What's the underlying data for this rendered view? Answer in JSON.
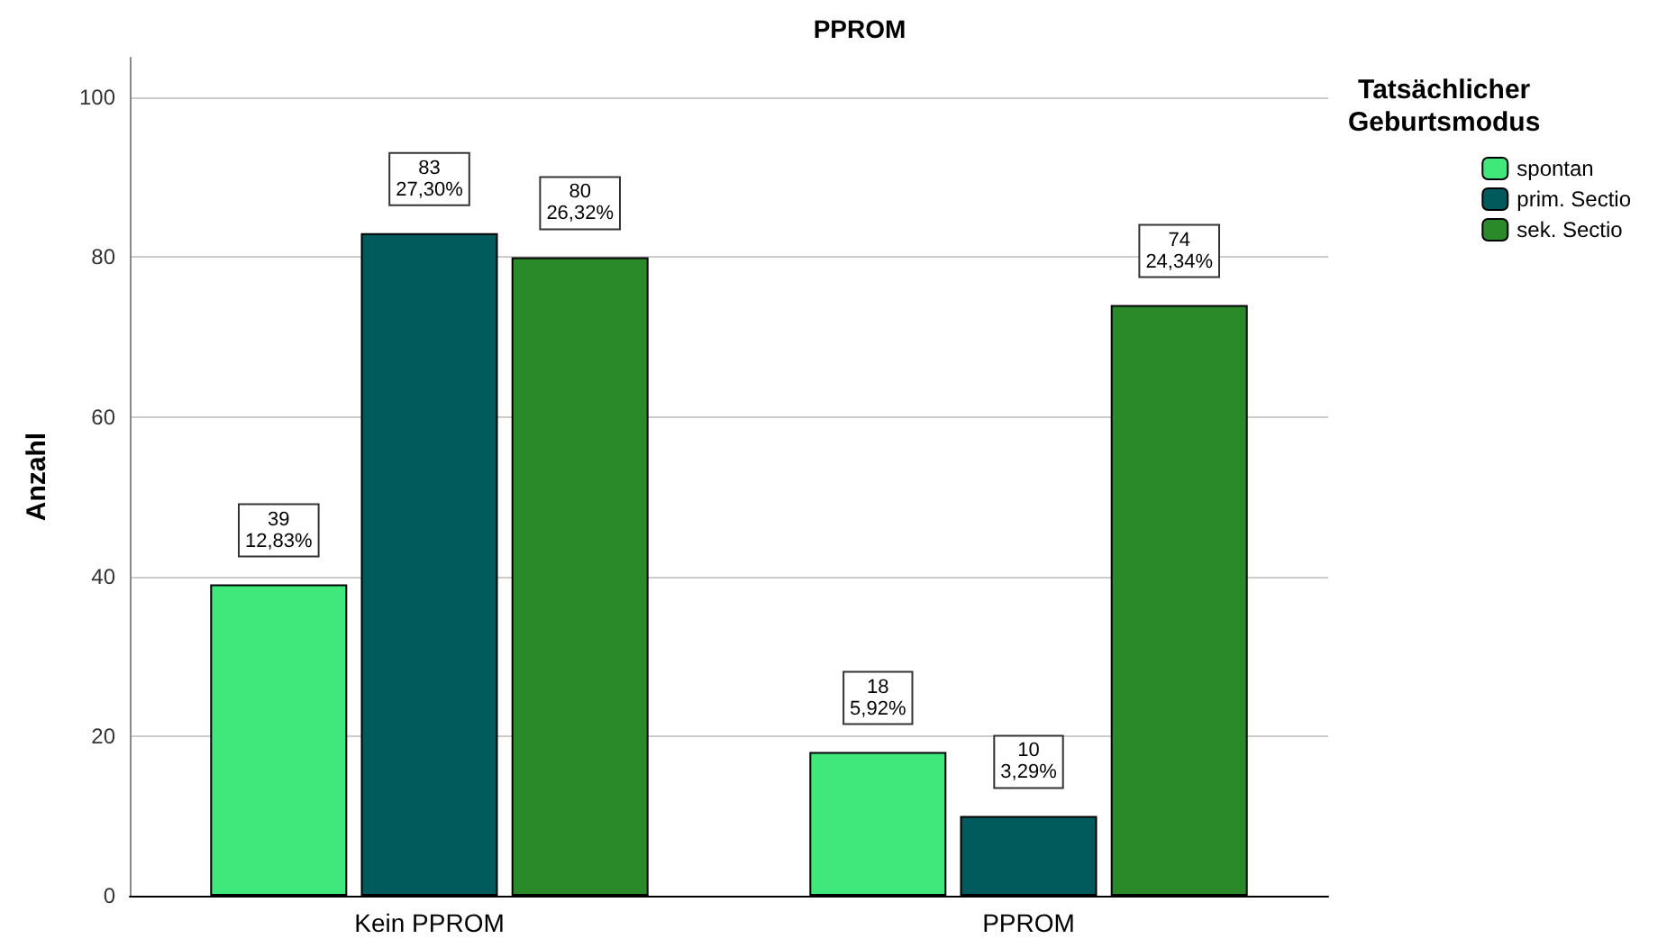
{
  "chart_data": {
    "type": "bar",
    "title": "PPROM",
    "ylabel": "Anzahl",
    "legend_title": "Tatsächlicher\nGeburtsmodus",
    "categories": [
      "Kein PPROM",
      "PPROM"
    ],
    "series": [
      {
        "name": "spontan",
        "color": "#40e87c",
        "values": [
          39,
          18
        ],
        "value_labels": [
          "39\n12,83%",
          "18\n5,92%"
        ]
      },
      {
        "name": "prim. Sectio",
        "color": "#015a5c",
        "values": [
          83,
          10
        ],
        "value_labels": [
          "83\n27,30%",
          "10\n3,29%"
        ]
      },
      {
        "name": "sek. Sectio",
        "color": "#2a8a2a",
        "values": [
          80,
          74
        ],
        "value_labels": [
          "80\n26,32%",
          "74\n24,34%"
        ]
      }
    ],
    "ylim": [
      0,
      105
    ],
    "yticks": [
      0,
      20,
      40,
      60,
      80,
      100
    ],
    "grid": "y",
    "legend": "right"
  }
}
